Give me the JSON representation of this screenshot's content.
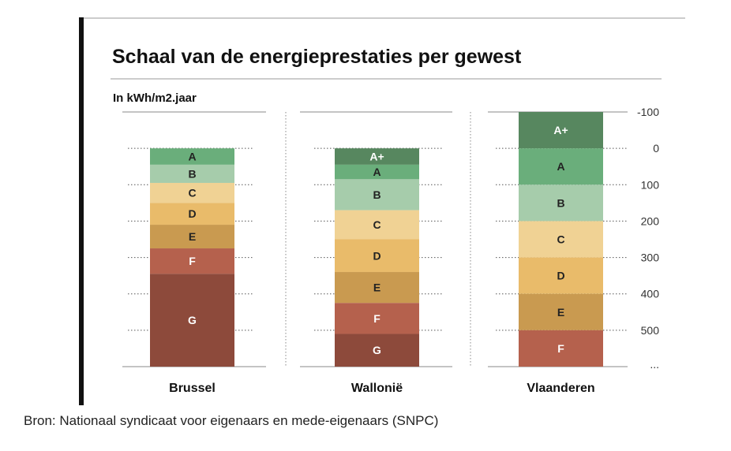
{
  "chart_data": {
    "type": "bar",
    "title": "Schaal van de energieprestaties per gewest",
    "unit": "In kWh/m2.jaar",
    "y_ticks": [
      "-100",
      "0",
      "100",
      "200",
      "300",
      "400",
      "500",
      "..."
    ],
    "ylim": [
      -100,
      600
    ],
    "grid": "dotted horizontal lines at each tick",
    "colors": {
      "A+": "#57875f",
      "A": "#6aae7b",
      "B": "#a6ccab",
      "C": "#f0d294",
      "D": "#e9bb6a",
      "E": "#c99a50",
      "F": "#b5614d",
      "G": "#8d4a3b"
    },
    "label_colors": {
      "A+": "#ffffff",
      "A": "#222222",
      "B": "#222222",
      "C": "#222222",
      "D": "#222222",
      "E": "#222222",
      "F": "#ffffff",
      "G": "#ffffff"
    },
    "columns": [
      {
        "name": "Brussel",
        "bands": [
          {
            "label": "A",
            "from": 0,
            "to": 45
          },
          {
            "label": "B",
            "from": 45,
            "to": 95
          },
          {
            "label": "C",
            "from": 95,
            "to": 150
          },
          {
            "label": "D",
            "from": 150,
            "to": 210
          },
          {
            "label": "E",
            "from": 210,
            "to": 275
          },
          {
            "label": "F",
            "from": 275,
            "to": 345
          },
          {
            "label": "G",
            "from": 345,
            "to": 600
          }
        ]
      },
      {
        "name": "Wallonië",
        "bands": [
          {
            "label": "A+",
            "from": 0,
            "to": 45
          },
          {
            "label": "A",
            "from": 45,
            "to": 85
          },
          {
            "label": "B",
            "from": 85,
            "to": 170
          },
          {
            "label": "C",
            "from": 170,
            "to": 250
          },
          {
            "label": "D",
            "from": 250,
            "to": 340
          },
          {
            "label": "E",
            "from": 340,
            "to": 425
          },
          {
            "label": "F",
            "from": 425,
            "to": 510
          },
          {
            "label": "G",
            "from": 510,
            "to": 600
          }
        ]
      },
      {
        "name": "Vlaanderen",
        "bands": [
          {
            "label": "A+",
            "from": -100,
            "to": 0
          },
          {
            "label": "A",
            "from": 0,
            "to": 100
          },
          {
            "label": "B",
            "from": 100,
            "to": 200
          },
          {
            "label": "C",
            "from": 200,
            "to": 300
          },
          {
            "label": "D",
            "from": 300,
            "to": 400
          },
          {
            "label": "E",
            "from": 400,
            "to": 500
          },
          {
            "label": "F",
            "from": 500,
            "to": 600
          }
        ]
      }
    ]
  },
  "source": "Bron: Nationaal syndicaat voor eigenaars en mede-eigenaars (SNPC)"
}
